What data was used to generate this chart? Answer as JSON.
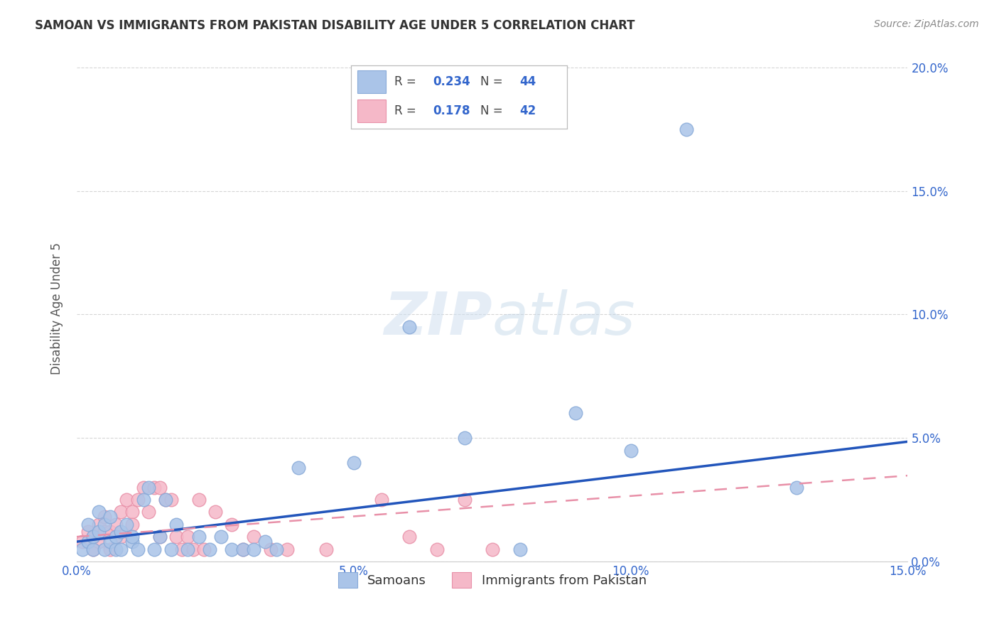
{
  "title": "SAMOAN VS IMMIGRANTS FROM PAKISTAN DISABILITY AGE UNDER 5 CORRELATION CHART",
  "source": "Source: ZipAtlas.com",
  "ylabel": "Disability Age Under 5",
  "xlim": [
    0.0,
    0.15
  ],
  "ylim": [
    0.0,
    0.205
  ],
  "background_color": "#ffffff",
  "grid_color": "#cccccc",
  "title_color": "#333333",
  "source_color": "#888888",
  "samoans_color": "#aac4e8",
  "samoans_edge_color": "#88aad8",
  "pakistan_color": "#f5b8c8",
  "pakistan_edge_color": "#e890a8",
  "trendline_samoan_color": "#2255bb",
  "trendline_pakistan_color": "#e890a8",
  "legend_R_samoan": "0.234",
  "legend_N_samoan": "44",
  "legend_R_pakistan": "0.178",
  "legend_N_pakistan": "42",
  "legend_color": "#3366cc",
  "samoans_x": [
    0.001,
    0.002,
    0.002,
    0.003,
    0.003,
    0.004,
    0.004,
    0.005,
    0.005,
    0.006,
    0.006,
    0.007,
    0.007,
    0.008,
    0.008,
    0.009,
    0.01,
    0.01,
    0.011,
    0.012,
    0.013,
    0.014,
    0.015,
    0.016,
    0.017,
    0.018,
    0.02,
    0.022,
    0.024,
    0.026,
    0.028,
    0.03,
    0.032,
    0.034,
    0.036,
    0.04,
    0.05,
    0.06,
    0.07,
    0.08,
    0.09,
    0.1,
    0.11,
    0.13
  ],
  "samoans_y": [
    0.005,
    0.008,
    0.015,
    0.005,
    0.01,
    0.012,
    0.02,
    0.005,
    0.015,
    0.008,
    0.018,
    0.005,
    0.01,
    0.012,
    0.005,
    0.015,
    0.008,
    0.01,
    0.005,
    0.025,
    0.03,
    0.005,
    0.01,
    0.025,
    0.005,
    0.015,
    0.005,
    0.01,
    0.005,
    0.01,
    0.005,
    0.005,
    0.005,
    0.008,
    0.005,
    0.038,
    0.04,
    0.095,
    0.05,
    0.005,
    0.06,
    0.045,
    0.175,
    0.03
  ],
  "pakistan_x": [
    0.001,
    0.002,
    0.003,
    0.003,
    0.004,
    0.004,
    0.005,
    0.005,
    0.006,
    0.006,
    0.007,
    0.008,
    0.008,
    0.009,
    0.01,
    0.01,
    0.011,
    0.012,
    0.013,
    0.014,
    0.015,
    0.015,
    0.016,
    0.017,
    0.018,
    0.019,
    0.02,
    0.021,
    0.022,
    0.023,
    0.025,
    0.028,
    0.03,
    0.032,
    0.035,
    0.038,
    0.045,
    0.055,
    0.06,
    0.065,
    0.07,
    0.075
  ],
  "pakistan_y": [
    0.008,
    0.012,
    0.005,
    0.01,
    0.015,
    0.008,
    0.012,
    0.018,
    0.005,
    0.012,
    0.015,
    0.02,
    0.01,
    0.025,
    0.02,
    0.015,
    0.025,
    0.03,
    0.02,
    0.03,
    0.03,
    0.01,
    0.025,
    0.025,
    0.01,
    0.005,
    0.01,
    0.005,
    0.025,
    0.005,
    0.02,
    0.015,
    0.005,
    0.01,
    0.005,
    0.005,
    0.005,
    0.025,
    0.01,
    0.005,
    0.025,
    0.005
  ]
}
